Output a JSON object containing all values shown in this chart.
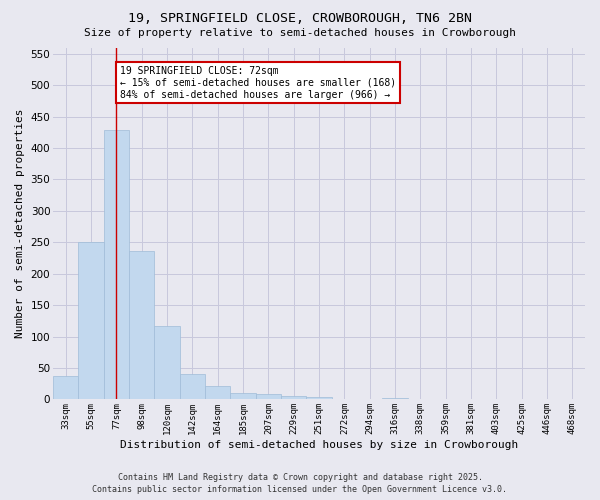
{
  "title_line1": "19, SPRINGFIELD CLOSE, CROWBOROUGH, TN6 2BN",
  "title_line2": "Size of property relative to semi-detached houses in Crowborough",
  "xlabel": "Distribution of semi-detached houses by size in Crowborough",
  "ylabel": "Number of semi-detached properties",
  "categories": [
    "33sqm",
    "55sqm",
    "77sqm",
    "98sqm",
    "120sqm",
    "142sqm",
    "164sqm",
    "185sqm",
    "207sqm",
    "229sqm",
    "251sqm",
    "272sqm",
    "294sqm",
    "316sqm",
    "338sqm",
    "359sqm",
    "381sqm",
    "403sqm",
    "425sqm",
    "446sqm",
    "468sqm"
  ],
  "values": [
    37,
    251,
    428,
    236,
    117,
    40,
    21,
    10,
    9,
    6,
    4,
    0,
    0,
    3,
    0,
    0,
    0,
    1,
    0,
    1,
    0
  ],
  "bar_color": "#c2d8ee",
  "bar_edge_color": "#a0bcd8",
  "grid_color": "#c8c8dc",
  "background_color": "#e8e8f0",
  "vline_x": 2,
  "vline_color": "#cc0000",
  "annotation_text": "19 SPRINGFIELD CLOSE: 72sqm\n← 15% of semi-detached houses are smaller (168)\n84% of semi-detached houses are larger (966) →",
  "annotation_box_facecolor": "#ffffff",
  "annotation_box_edgecolor": "#cc0000",
  "ylim": [
    0,
    560
  ],
  "yticks": [
    0,
    50,
    100,
    150,
    200,
    250,
    300,
    350,
    400,
    450,
    500,
    550
  ],
  "footer_text": "Contains HM Land Registry data © Crown copyright and database right 2025.\nContains public sector information licensed under the Open Government Licence v3.0."
}
